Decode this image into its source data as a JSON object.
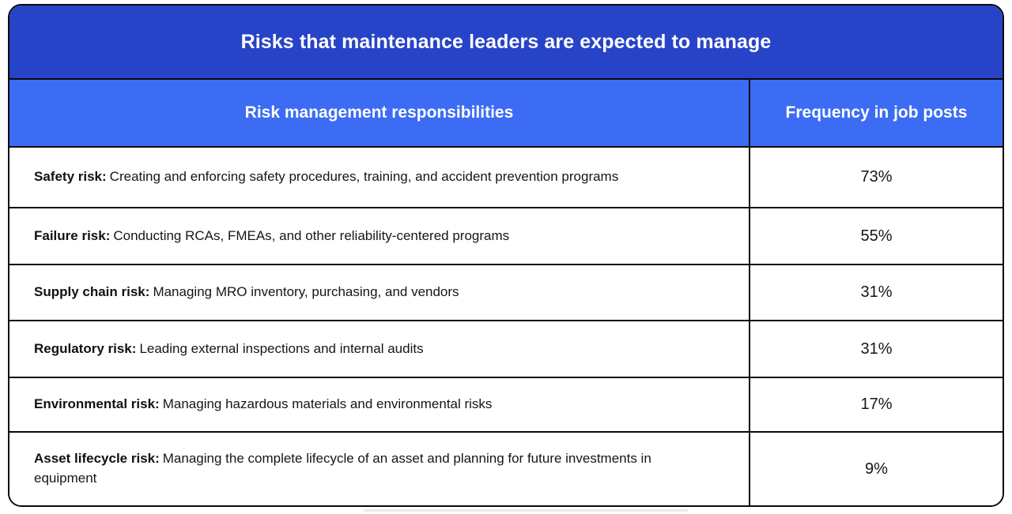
{
  "table": {
    "title": "Risks that maintenance leaders are expected to manage",
    "columns": [
      "Risk management responsibilities",
      "Frequency in job posts"
    ],
    "rows": [
      {
        "label": "Safety risk:",
        "description": "Creating and enforcing safety procedures, training, and accident prevention programs",
        "frequency": "73%"
      },
      {
        "label": "Failure risk:",
        "description": "Conducting RCAs, FMEAs, and other reliability-centered programs",
        "frequency": "55%"
      },
      {
        "label": "Supply chain risk:",
        "description": "Managing MRO inventory, purchasing, and vendors",
        "frequency": "31%"
      },
      {
        "label": "Regulatory risk:",
        "description": "Leading external inspections and internal audits",
        "frequency": "31%"
      },
      {
        "label": "Environmental risk:",
        "description": "Managing hazardous materials and environmental risks",
        "frequency": "17%"
      },
      {
        "label": "Asset lifecycle risk:",
        "description": "Managing the complete lifecycle of an asset and planning for future investments in equipment",
        "frequency": "9%"
      }
    ]
  },
  "colors": {
    "title_bar_bg": "#2744C8",
    "header_row_bg": "#3D6CF4",
    "border": "#0a0a0a",
    "header_text": "#ffffff",
    "body_text": "#161616"
  },
  "chart_data": {
    "type": "table",
    "title": "Risks that maintenance leaders are expected to manage",
    "columns": [
      "Risk management responsibilities",
      "Frequency in job posts"
    ],
    "categories": [
      "Safety risk",
      "Failure risk",
      "Supply chain risk",
      "Regulatory risk",
      "Environmental risk",
      "Asset lifecycle risk"
    ],
    "values": [
      73,
      55,
      31,
      31,
      17,
      9
    ],
    "value_unit": "%",
    "rows": [
      [
        "Safety risk: Creating and enforcing safety procedures, training, and accident prevention programs",
        "73%"
      ],
      [
        "Failure risk: Conducting RCAs, FMEAs, and other reliability-centered programs",
        "55%"
      ],
      [
        "Supply chain risk: Managing MRO inventory, purchasing, and vendors",
        "31%"
      ],
      [
        "Regulatory risk: Leading external inspections and internal audits",
        "31%"
      ],
      [
        "Environmental risk: Managing hazardous materials and environmental risks",
        "17%"
      ],
      [
        "Asset lifecycle risk: Managing the complete lifecycle of an asset and planning for future investments in equipment",
        "9%"
      ]
    ]
  }
}
